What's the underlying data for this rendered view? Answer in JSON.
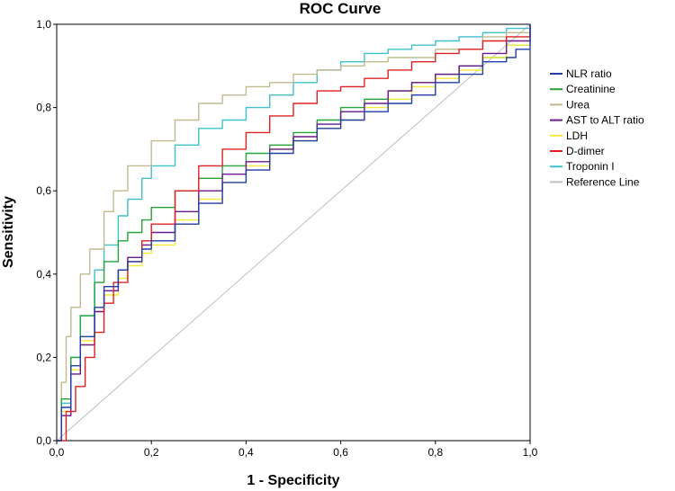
{
  "chart_data": {
    "type": "line",
    "title": "ROC Curve",
    "xlabel": "1 - Specificity",
    "ylabel": "Sensitivity",
    "xlim": [
      0,
      1
    ],
    "ylim": [
      0,
      1
    ],
    "xticks": [
      0,
      0.2,
      0.4,
      0.6,
      0.8,
      1.0
    ],
    "yticks": [
      0,
      0.2,
      0.4,
      0.6,
      0.8,
      1.0
    ],
    "xtick_labels": [
      "0,0",
      "0,2",
      "0,4",
      "0,6",
      "0,8",
      "1,0"
    ],
    "ytick_labels": [
      "0,0",
      "0,2",
      "0,4",
      "0,6",
      "0,8",
      "1,0"
    ],
    "grid": false,
    "legend_position": "right",
    "series": [
      {
        "name": "NLR ratio",
        "color": "#1f3fa6",
        "x": [
          0,
          0.01,
          0.03,
          0.05,
          0.08,
          0.1,
          0.13,
          0.15,
          0.18,
          0.2,
          0.25,
          0.3,
          0.35,
          0.4,
          0.45,
          0.5,
          0.55,
          0.6,
          0.65,
          0.7,
          0.75,
          0.8,
          0.85,
          0.9,
          0.95,
          0.97,
          1.0
        ],
        "y": [
          0,
          0.08,
          0.18,
          0.25,
          0.32,
          0.37,
          0.41,
          0.43,
          0.46,
          0.48,
          0.52,
          0.57,
          0.62,
          0.65,
          0.69,
          0.72,
          0.75,
          0.77,
          0.79,
          0.81,
          0.83,
          0.86,
          0.88,
          0.91,
          0.92,
          0.94,
          1.0
        ]
      },
      {
        "name": "Creatinine",
        "color": "#27a33a",
        "x": [
          0,
          0.01,
          0.03,
          0.05,
          0.08,
          0.1,
          0.13,
          0.15,
          0.18,
          0.2,
          0.25,
          0.3,
          0.35,
          0.4,
          0.45,
          0.5,
          0.55,
          0.6,
          0.65,
          0.7,
          0.75,
          0.8,
          0.85,
          0.9,
          0.95,
          1.0
        ],
        "y": [
          0,
          0.1,
          0.2,
          0.3,
          0.38,
          0.43,
          0.48,
          0.5,
          0.53,
          0.56,
          0.6,
          0.63,
          0.66,
          0.69,
          0.71,
          0.74,
          0.77,
          0.8,
          0.82,
          0.84,
          0.86,
          0.88,
          0.9,
          0.92,
          0.95,
          1.0
        ]
      },
      {
        "name": "Urea",
        "color": "#c2bb8f",
        "x": [
          0,
          0.01,
          0.02,
          0.03,
          0.05,
          0.07,
          0.1,
          0.12,
          0.15,
          0.2,
          0.25,
          0.3,
          0.35,
          0.4,
          0.45,
          0.5,
          0.55,
          0.6,
          0.65,
          0.7,
          0.8,
          0.9,
          0.95,
          1.0
        ],
        "y": [
          0,
          0.14,
          0.25,
          0.32,
          0.4,
          0.46,
          0.55,
          0.6,
          0.66,
          0.72,
          0.77,
          0.81,
          0.83,
          0.85,
          0.86,
          0.88,
          0.89,
          0.9,
          0.91,
          0.92,
          0.94,
          0.97,
          0.98,
          1.0
        ]
      },
      {
        "name": "AST to ALT ratio",
        "color": "#6b1a8a",
        "x": [
          0,
          0.01,
          0.03,
          0.05,
          0.08,
          0.1,
          0.13,
          0.15,
          0.18,
          0.2,
          0.25,
          0.3,
          0.35,
          0.4,
          0.45,
          0.5,
          0.55,
          0.6,
          0.65,
          0.7,
          0.75,
          0.8,
          0.85,
          0.9,
          0.95,
          1.0
        ],
        "y": [
          0,
          0.06,
          0.16,
          0.23,
          0.31,
          0.36,
          0.41,
          0.44,
          0.47,
          0.5,
          0.55,
          0.6,
          0.64,
          0.67,
          0.7,
          0.73,
          0.76,
          0.79,
          0.81,
          0.84,
          0.86,
          0.88,
          0.9,
          0.93,
          0.96,
          1.0
        ]
      },
      {
        "name": "LDH",
        "color": "#f5e93a",
        "x": [
          0,
          0.01,
          0.03,
          0.05,
          0.08,
          0.1,
          0.13,
          0.15,
          0.18,
          0.2,
          0.25,
          0.3,
          0.35,
          0.4,
          0.45,
          0.5,
          0.55,
          0.6,
          0.65,
          0.7,
          0.75,
          0.8,
          0.85,
          0.9,
          0.95,
          1.0
        ],
        "y": [
          0,
          0.07,
          0.17,
          0.24,
          0.31,
          0.35,
          0.39,
          0.42,
          0.45,
          0.47,
          0.53,
          0.58,
          0.62,
          0.66,
          0.7,
          0.72,
          0.75,
          0.77,
          0.8,
          0.82,
          0.85,
          0.87,
          0.89,
          0.92,
          0.95,
          1.0
        ]
      },
      {
        "name": "D-dimer",
        "color": "#e02020",
        "x": [
          0,
          0.02,
          0.04,
          0.06,
          0.08,
          0.1,
          0.12,
          0.15,
          0.18,
          0.2,
          0.25,
          0.3,
          0.35,
          0.4,
          0.45,
          0.5,
          0.55,
          0.6,
          0.65,
          0.7,
          0.75,
          0.8,
          0.85,
          0.9,
          0.95,
          1.0
        ],
        "y": [
          0,
          0.07,
          0.13,
          0.2,
          0.26,
          0.33,
          0.38,
          0.43,
          0.48,
          0.52,
          0.6,
          0.66,
          0.7,
          0.74,
          0.78,
          0.81,
          0.84,
          0.85,
          0.87,
          0.89,
          0.91,
          0.93,
          0.94,
          0.96,
          0.97,
          1.0
        ]
      },
      {
        "name": "Troponin I",
        "color": "#3ec1c9",
        "x": [
          0,
          0.01,
          0.03,
          0.05,
          0.08,
          0.1,
          0.13,
          0.15,
          0.18,
          0.2,
          0.25,
          0.3,
          0.35,
          0.4,
          0.45,
          0.5,
          0.55,
          0.6,
          0.65,
          0.7,
          0.75,
          0.8,
          0.85,
          0.9,
          0.95,
          1.0
        ],
        "y": [
          0,
          0.09,
          0.2,
          0.3,
          0.41,
          0.47,
          0.54,
          0.58,
          0.63,
          0.66,
          0.71,
          0.75,
          0.77,
          0.8,
          0.83,
          0.86,
          0.89,
          0.91,
          0.93,
          0.94,
          0.95,
          0.96,
          0.97,
          0.98,
          0.99,
          1.0
        ]
      },
      {
        "name": "Reference Line",
        "color": "#bfbfbf",
        "x": [
          0,
          1
        ],
        "y": [
          0,
          1
        ]
      }
    ]
  }
}
